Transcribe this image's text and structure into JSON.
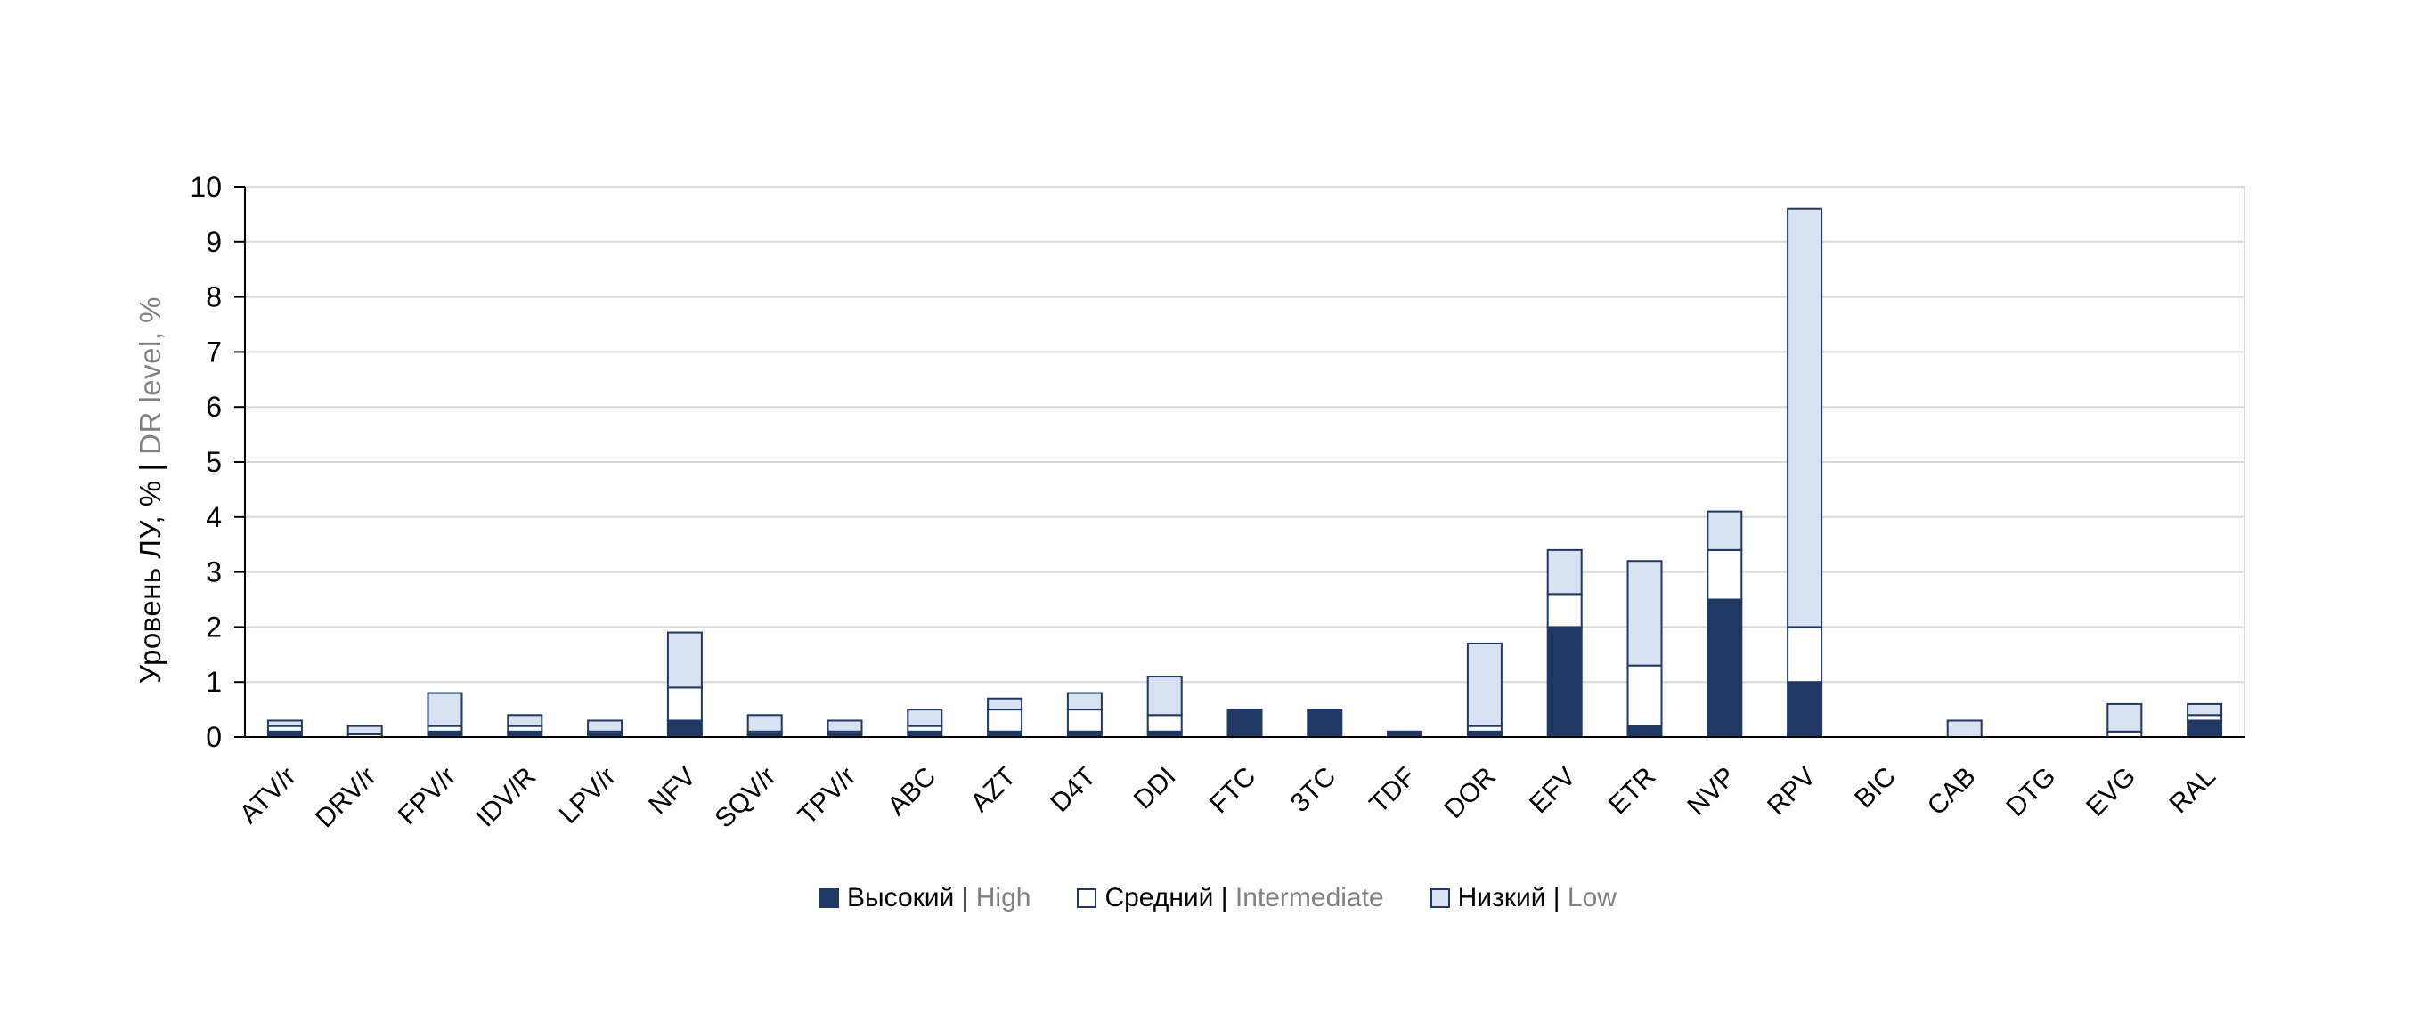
{
  "chart_data": {
    "type": "bar",
    "stacked": true,
    "title": "",
    "ylabel_primary": "Уровень ЛУ, % | ",
    "ylabel_secondary": "DR level, %",
    "ylim": [
      0,
      10
    ],
    "ytick_step": 1,
    "yticks": [
      0,
      1,
      2,
      3,
      4,
      5,
      6,
      7,
      8,
      9,
      10
    ],
    "grid": true,
    "legend_position": "bottom",
    "categories": [
      "ATV/r",
      "DRV/r",
      "FPV/r",
      "IDV/R",
      "LPV/r",
      "NFV",
      "SQV/r",
      "TPV/r",
      "ABC",
      "AZT",
      "D4T",
      "DDI",
      "FTC",
      "3TC",
      "TDF",
      "DOR",
      "EFV",
      "ETR",
      "NVP",
      "RPV",
      "BIC",
      "CAB",
      "DTG",
      "EVG",
      "RAL"
    ],
    "series": [
      {
        "name": "Высокий | High",
        "name_primary": "Высокий | ",
        "name_secondary": "High",
        "color": "#1F3864",
        "border": "#1F3864",
        "values": [
          0.1,
          0,
          0.1,
          0.1,
          0.05,
          0.3,
          0.05,
          0.05,
          0.1,
          0.1,
          0.1,
          0.1,
          0.5,
          0.5,
          0.1,
          0.1,
          2.0,
          0.2,
          2.5,
          1.0,
          0,
          0,
          0,
          0,
          0.3
        ]
      },
      {
        "name": "Средний | Intermediate",
        "name_primary": "Средний | ",
        "name_secondary": "Intermediate",
        "color": "#FFFFFF",
        "border": "#1F3864",
        "values": [
          0.1,
          0.05,
          0.1,
          0.1,
          0.05,
          0.6,
          0.05,
          0.05,
          0.1,
          0.4,
          0.4,
          0.3,
          0,
          0,
          0,
          0.1,
          0.6,
          1.1,
          0.9,
          1.0,
          0,
          0,
          0,
          0.1,
          0.1
        ]
      },
      {
        "name": "Низкий | Low",
        "name_primary": "Низкий | ",
        "name_secondary": "Low",
        "color": "#D9E2F2",
        "border": "#1F3864",
        "values": [
          0.1,
          0.15,
          0.6,
          0.2,
          0.2,
          1.0,
          0.3,
          0.2,
          0.3,
          0.2,
          0.3,
          0.7,
          0,
          0,
          0,
          1.5,
          0.8,
          1.9,
          0.7,
          7.6,
          0,
          0.3,
          0,
          0.5,
          0.2
        ]
      }
    ],
    "colors": {
      "axis": "#000000",
      "grid": "#D9D9D9",
      "secondary_text": "#808080"
    }
  }
}
